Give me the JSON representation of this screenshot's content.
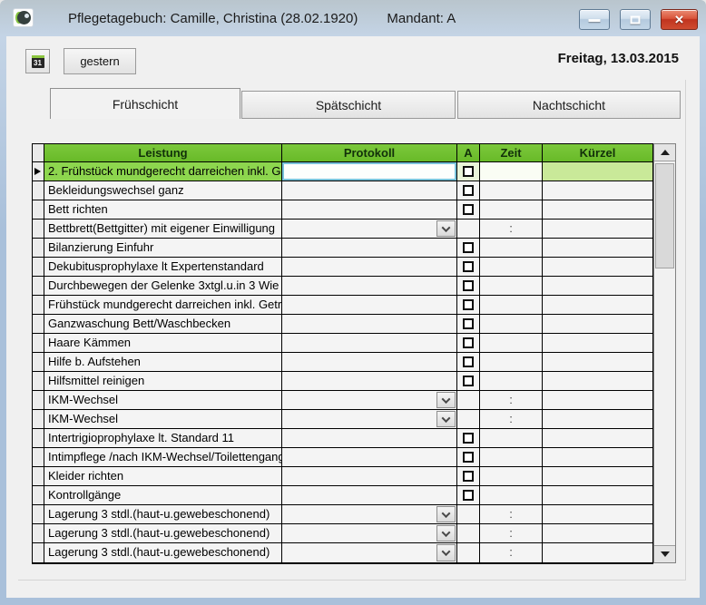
{
  "window": {
    "title": "Pflegetagebuch: Camille, Christina  (28.02.1920)",
    "mandant": "Mandant: A",
    "icons": {
      "app": "leaf-globe-app-icon",
      "minimize": "window-minimize-icon",
      "maximize": "window-maximize-icon",
      "close": "window-close-icon"
    }
  },
  "toolbar": {
    "calendar_icon_text": "31",
    "gestern_label": "gestern",
    "date": "Freitag, 13.03.2015"
  },
  "tabs": [
    {
      "label": "Frühschicht",
      "active": true
    },
    {
      "label": "Spätschicht",
      "active": false
    },
    {
      "label": "Nachtschicht",
      "active": false
    }
  ],
  "table": {
    "columns": [
      "",
      "Leistung",
      "Protokoll",
      "A",
      "Zeit",
      "Kürzel"
    ],
    "zeit_placeholder": ":",
    "rows": [
      {
        "leistung": "2. Frühstück mundgerecht darreichen inkl. G",
        "control": "checkbox",
        "checked": false,
        "selected": true,
        "zeit": "",
        "kuerzel": ""
      },
      {
        "leistung": "Bekleidungswechsel ganz",
        "control": "checkbox",
        "checked": false,
        "selected": false,
        "zeit": "",
        "kuerzel": ""
      },
      {
        "leistung": "Bett richten",
        "control": "checkbox",
        "checked": false,
        "selected": false,
        "zeit": "",
        "kuerzel": ""
      },
      {
        "leistung": "Bettbrett(Bettgitter) mit eigener Einwilligung",
        "control": "dropdown",
        "checked": false,
        "selected": false,
        "zeit": ":",
        "kuerzel": ""
      },
      {
        "leistung": "Bilanzierung Einfuhr",
        "control": "checkbox",
        "checked": false,
        "selected": false,
        "zeit": "",
        "kuerzel": ""
      },
      {
        "leistung": "Dekubitusprophylaxe lt Expertenstandard",
        "control": "checkbox",
        "checked": false,
        "selected": false,
        "zeit": "",
        "kuerzel": ""
      },
      {
        "leistung": "Durchbewegen der Gelenke 3xtgl.u.in 3 Wie",
        "control": "checkbox",
        "checked": false,
        "selected": false,
        "zeit": "",
        "kuerzel": ""
      },
      {
        "leistung": "Frühstück mundgerecht darreichen inkl. Getr",
        "control": "checkbox",
        "checked": false,
        "selected": false,
        "zeit": "",
        "kuerzel": ""
      },
      {
        "leistung": "Ganzwaschung Bett/Waschbecken",
        "control": "checkbox",
        "checked": false,
        "selected": false,
        "zeit": "",
        "kuerzel": ""
      },
      {
        "leistung": "Haare Kämmen",
        "control": "checkbox",
        "checked": false,
        "selected": false,
        "zeit": "",
        "kuerzel": ""
      },
      {
        "leistung": "Hilfe b. Aufstehen",
        "control": "checkbox",
        "checked": false,
        "selected": false,
        "zeit": "",
        "kuerzel": ""
      },
      {
        "leistung": "Hilfsmittel reinigen",
        "control": "checkbox",
        "checked": false,
        "selected": false,
        "zeit": "",
        "kuerzel": ""
      },
      {
        "leistung": "IKM-Wechsel",
        "control": "dropdown",
        "checked": false,
        "selected": false,
        "zeit": ":",
        "kuerzel": ""
      },
      {
        "leistung": "IKM-Wechsel",
        "control": "dropdown",
        "checked": false,
        "selected": false,
        "zeit": ":",
        "kuerzel": ""
      },
      {
        "leistung": "Intertrigioprophylaxe lt. Standard 11",
        "control": "checkbox",
        "checked": false,
        "selected": false,
        "zeit": "",
        "kuerzel": ""
      },
      {
        "leistung": "Intimpflege /nach IKM-Wechsel/Toilettengang",
        "control": "checkbox",
        "checked": false,
        "selected": false,
        "zeit": "",
        "kuerzel": ""
      },
      {
        "leistung": "Kleider richten",
        "control": "checkbox",
        "checked": false,
        "selected": false,
        "zeit": "",
        "kuerzel": ""
      },
      {
        "leistung": "Kontrollgänge",
        "control": "checkbox",
        "checked": false,
        "selected": false,
        "zeit": "",
        "kuerzel": ""
      },
      {
        "leistung": "Lagerung 3 stdl.(haut-u.gewebeschonend)",
        "control": "dropdown",
        "checked": false,
        "selected": false,
        "zeit": ":",
        "kuerzel": ""
      },
      {
        "leistung": "Lagerung 3 stdl.(haut-u.gewebeschonend)",
        "control": "dropdown",
        "checked": false,
        "selected": false,
        "zeit": ":",
        "kuerzel": ""
      },
      {
        "leistung": "Lagerung 3 stdl.(haut-u.gewebeschonend)",
        "control": "dropdown",
        "checked": false,
        "selected": false,
        "zeit": ":",
        "kuerzel": ""
      }
    ]
  },
  "colors": {
    "header_green": "#68ba28",
    "selected_row_green": "#8dd64e",
    "selected_kuerzel_green": "#c9e999",
    "focus_border_teal": "#79c3da",
    "titlebar_blue": "#a9c0da",
    "close_red": "#c0341f"
  }
}
